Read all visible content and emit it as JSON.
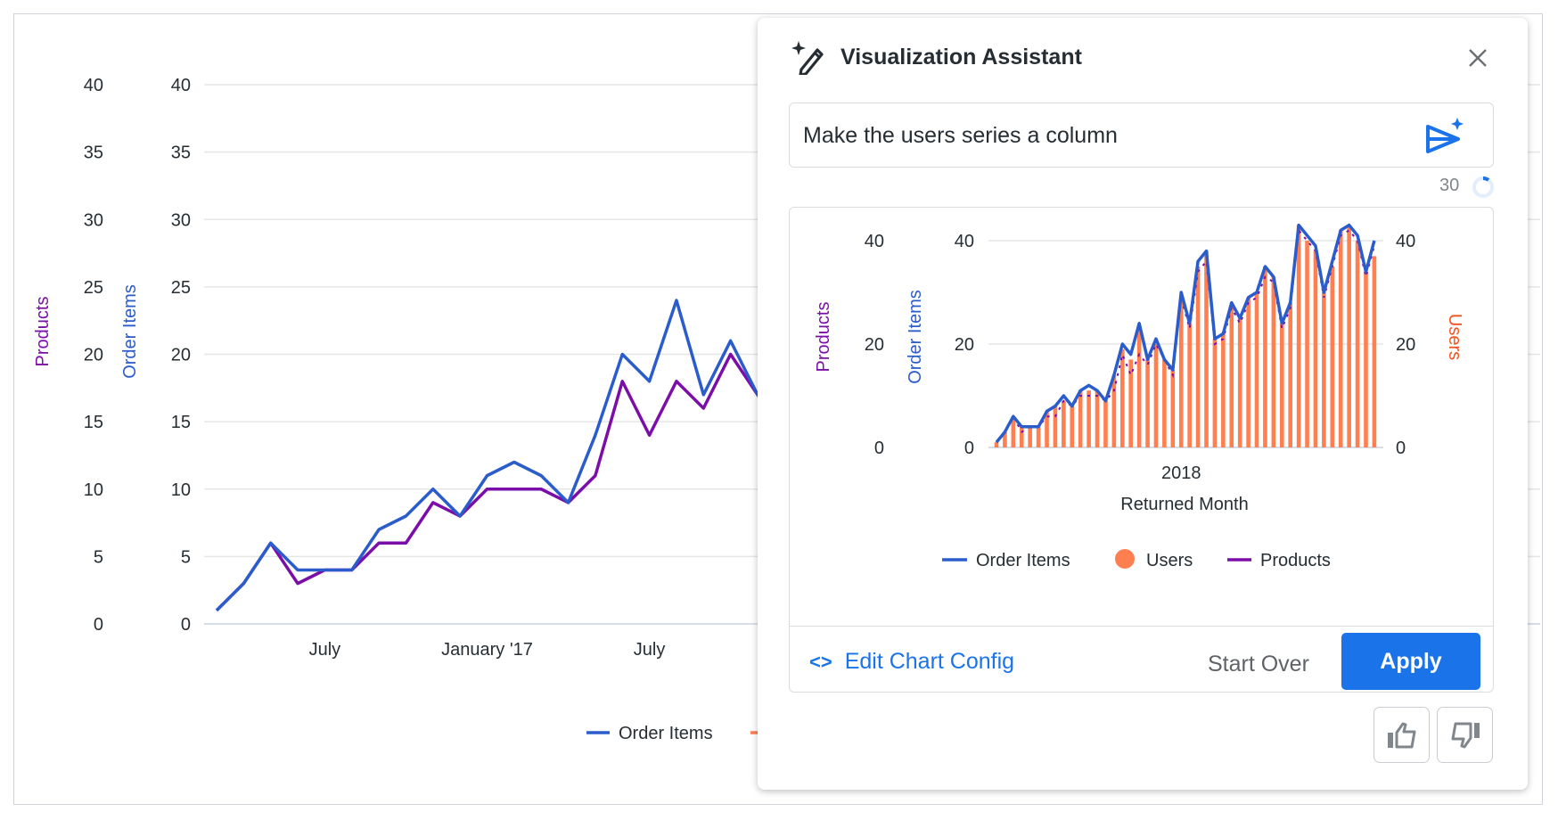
{
  "colors": {
    "order_items": "#2a5ccc",
    "products": "#7b0ea8",
    "users": "#ff7f50",
    "users_axis": "#f4511e",
    "grid": "#e6e6e6",
    "accent": "#1a73e8"
  },
  "chart_data": [
    {
      "type": "line",
      "axes": [
        {
          "title": "Products",
          "ticks": [
            "0",
            "5",
            "10",
            "15",
            "20",
            "25",
            "30",
            "35",
            "40"
          ],
          "ylim": [
            0,
            40
          ],
          "side": "left-outer"
        },
        {
          "title": "Order Items",
          "ticks": [
            "0",
            "5",
            "10",
            "15",
            "20",
            "25",
            "30",
            "35",
            "40"
          ],
          "ylim": [
            0,
            40
          ],
          "side": "left"
        }
      ],
      "x_ticks": [
        {
          "label": "July",
          "index": 4
        },
        {
          "label": "January '17",
          "index": 10
        },
        {
          "label": "July",
          "index": 16
        }
      ],
      "series": [
        {
          "name": "Order Items",
          "values": [
            1,
            3,
            6,
            4,
            4,
            4,
            7,
            8,
            10,
            8,
            11,
            12,
            11,
            9,
            14,
            20,
            18,
            24,
            17,
            21,
            17,
            15,
            30,
            24,
            36,
            38,
            21,
            22,
            28,
            25,
            29,
            30,
            35,
            33,
            24,
            28,
            43,
            41,
            39,
            30,
            36,
            42,
            43,
            41,
            34,
            40
          ]
        },
        {
          "name": "Products",
          "values": [
            1,
            3,
            6,
            3,
            4,
            4,
            6,
            6,
            9,
            8,
            10,
            10,
            10,
            9,
            11,
            18,
            14,
            18,
            16,
            20,
            17,
            14,
            29,
            23,
            34,
            36,
            20,
            21,
            27,
            24,
            28,
            29,
            33,
            32,
            23,
            27,
            42,
            40,
            38,
            29,
            35,
            41,
            42,
            40,
            33,
            39
          ]
        }
      ],
      "legend": [
        "Order Items"
      ],
      "legend_position": "bottom",
      "grid": true
    },
    {
      "type": "bar+line",
      "axes": [
        {
          "title": "Products",
          "ticks": [
            "0",
            "20",
            "40"
          ],
          "ylim": [
            0,
            40
          ],
          "side": "left-outer"
        },
        {
          "title": "Order Items",
          "ticks": [
            "0",
            "20",
            "40"
          ],
          "ylim": [
            0,
            40
          ],
          "side": "left"
        },
        {
          "title": "Users",
          "ticks": [
            "0",
            "20",
            "40"
          ],
          "ylim": [
            0,
            40
          ],
          "side": "right"
        }
      ],
      "xlabel": "Returned Month",
      "x_ticks": [
        {
          "label": "2018",
          "index": 22
        }
      ],
      "series": [
        {
          "name": "Order Items",
          "kind": "line",
          "values": [
            1,
            3,
            6,
            4,
            4,
            4,
            7,
            8,
            10,
            8,
            11,
            12,
            11,
            9,
            14,
            20,
            18,
            24,
            17,
            21,
            17,
            15,
            30,
            24,
            36,
            38,
            21,
            22,
            28,
            25,
            29,
            30,
            35,
            33,
            24,
            28,
            43,
            41,
            39,
            30,
            36,
            42,
            43,
            41,
            34,
            40
          ]
        },
        {
          "name": "Users",
          "kind": "column",
          "values": [
            1,
            3,
            6,
            4,
            4,
            4,
            7,
            8,
            9,
            8,
            11,
            11,
            11,
            9,
            14,
            19,
            17,
            23,
            17,
            20,
            17,
            15,
            29,
            24,
            35,
            38,
            21,
            22,
            27,
            25,
            29,
            30,
            35,
            33,
            24,
            28,
            43,
            40,
            38,
            30,
            35,
            42,
            43,
            40,
            34,
            37
          ]
        },
        {
          "name": "Products",
          "kind": "line",
          "values": [
            1,
            3,
            6,
            3,
            4,
            4,
            6,
            6,
            9,
            8,
            10,
            10,
            10,
            9,
            11,
            18,
            14,
            18,
            16,
            20,
            17,
            14,
            29,
            23,
            34,
            36,
            20,
            21,
            27,
            24,
            28,
            29,
            33,
            32,
            23,
            27,
            42,
            40,
            38,
            29,
            35,
            41,
            42,
            40,
            33,
            39
          ]
        }
      ],
      "legend": [
        "Order Items",
        "Users",
        "Products"
      ],
      "legend_position": "bottom",
      "grid": true
    }
  ],
  "panel": {
    "title": "Visualization Assistant",
    "title_icon": "magic-wand-icon",
    "prompt_value": "Make the users series a column",
    "send_icon": "send-sparkle-icon",
    "counter": "30",
    "edit_config_label": "Edit Chart Config",
    "start_over_label": "Start Over",
    "apply_label": "Apply",
    "feedback": [
      "thumbs-up-icon",
      "thumbs-down-icon"
    ]
  }
}
